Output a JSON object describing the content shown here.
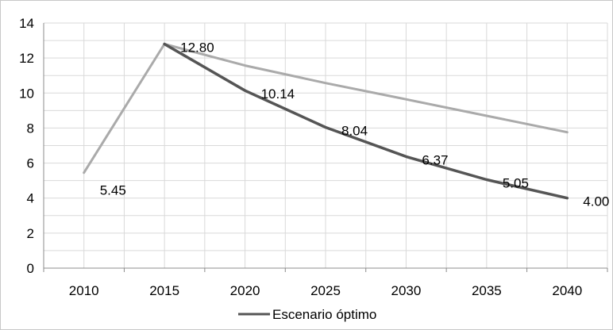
{
  "chart_data": {
    "type": "line",
    "title": "",
    "xlabel": "",
    "ylabel": "",
    "categories": [
      "2010",
      "2015",
      "2020",
      "2025",
      "2030",
      "2035",
      "2040"
    ],
    "ylim": [
      0,
      14
    ],
    "yticks": [
      "0",
      "2",
      "4",
      "6",
      "8",
      "10",
      "12",
      "14"
    ],
    "grid": true,
    "legend_position": "bottom",
    "series": [
      {
        "name": "",
        "color": "#aaaaaa",
        "values": [
          5.45,
          12.8,
          11.57,
          10.57,
          9.64,
          8.7,
          7.76
        ],
        "labels": [
          "5.45",
          "12.80",
          "",
          "",
          "",
          "",
          ""
        ]
      },
      {
        "name": "Escenario óptimo",
        "color": "#555555",
        "values": [
          null,
          12.8,
          10.14,
          8.04,
          6.37,
          5.05,
          4.0
        ],
        "labels": [
          "",
          "",
          "10.14",
          "8.04",
          "6.37",
          "5.05",
          "4.00"
        ]
      }
    ]
  }
}
